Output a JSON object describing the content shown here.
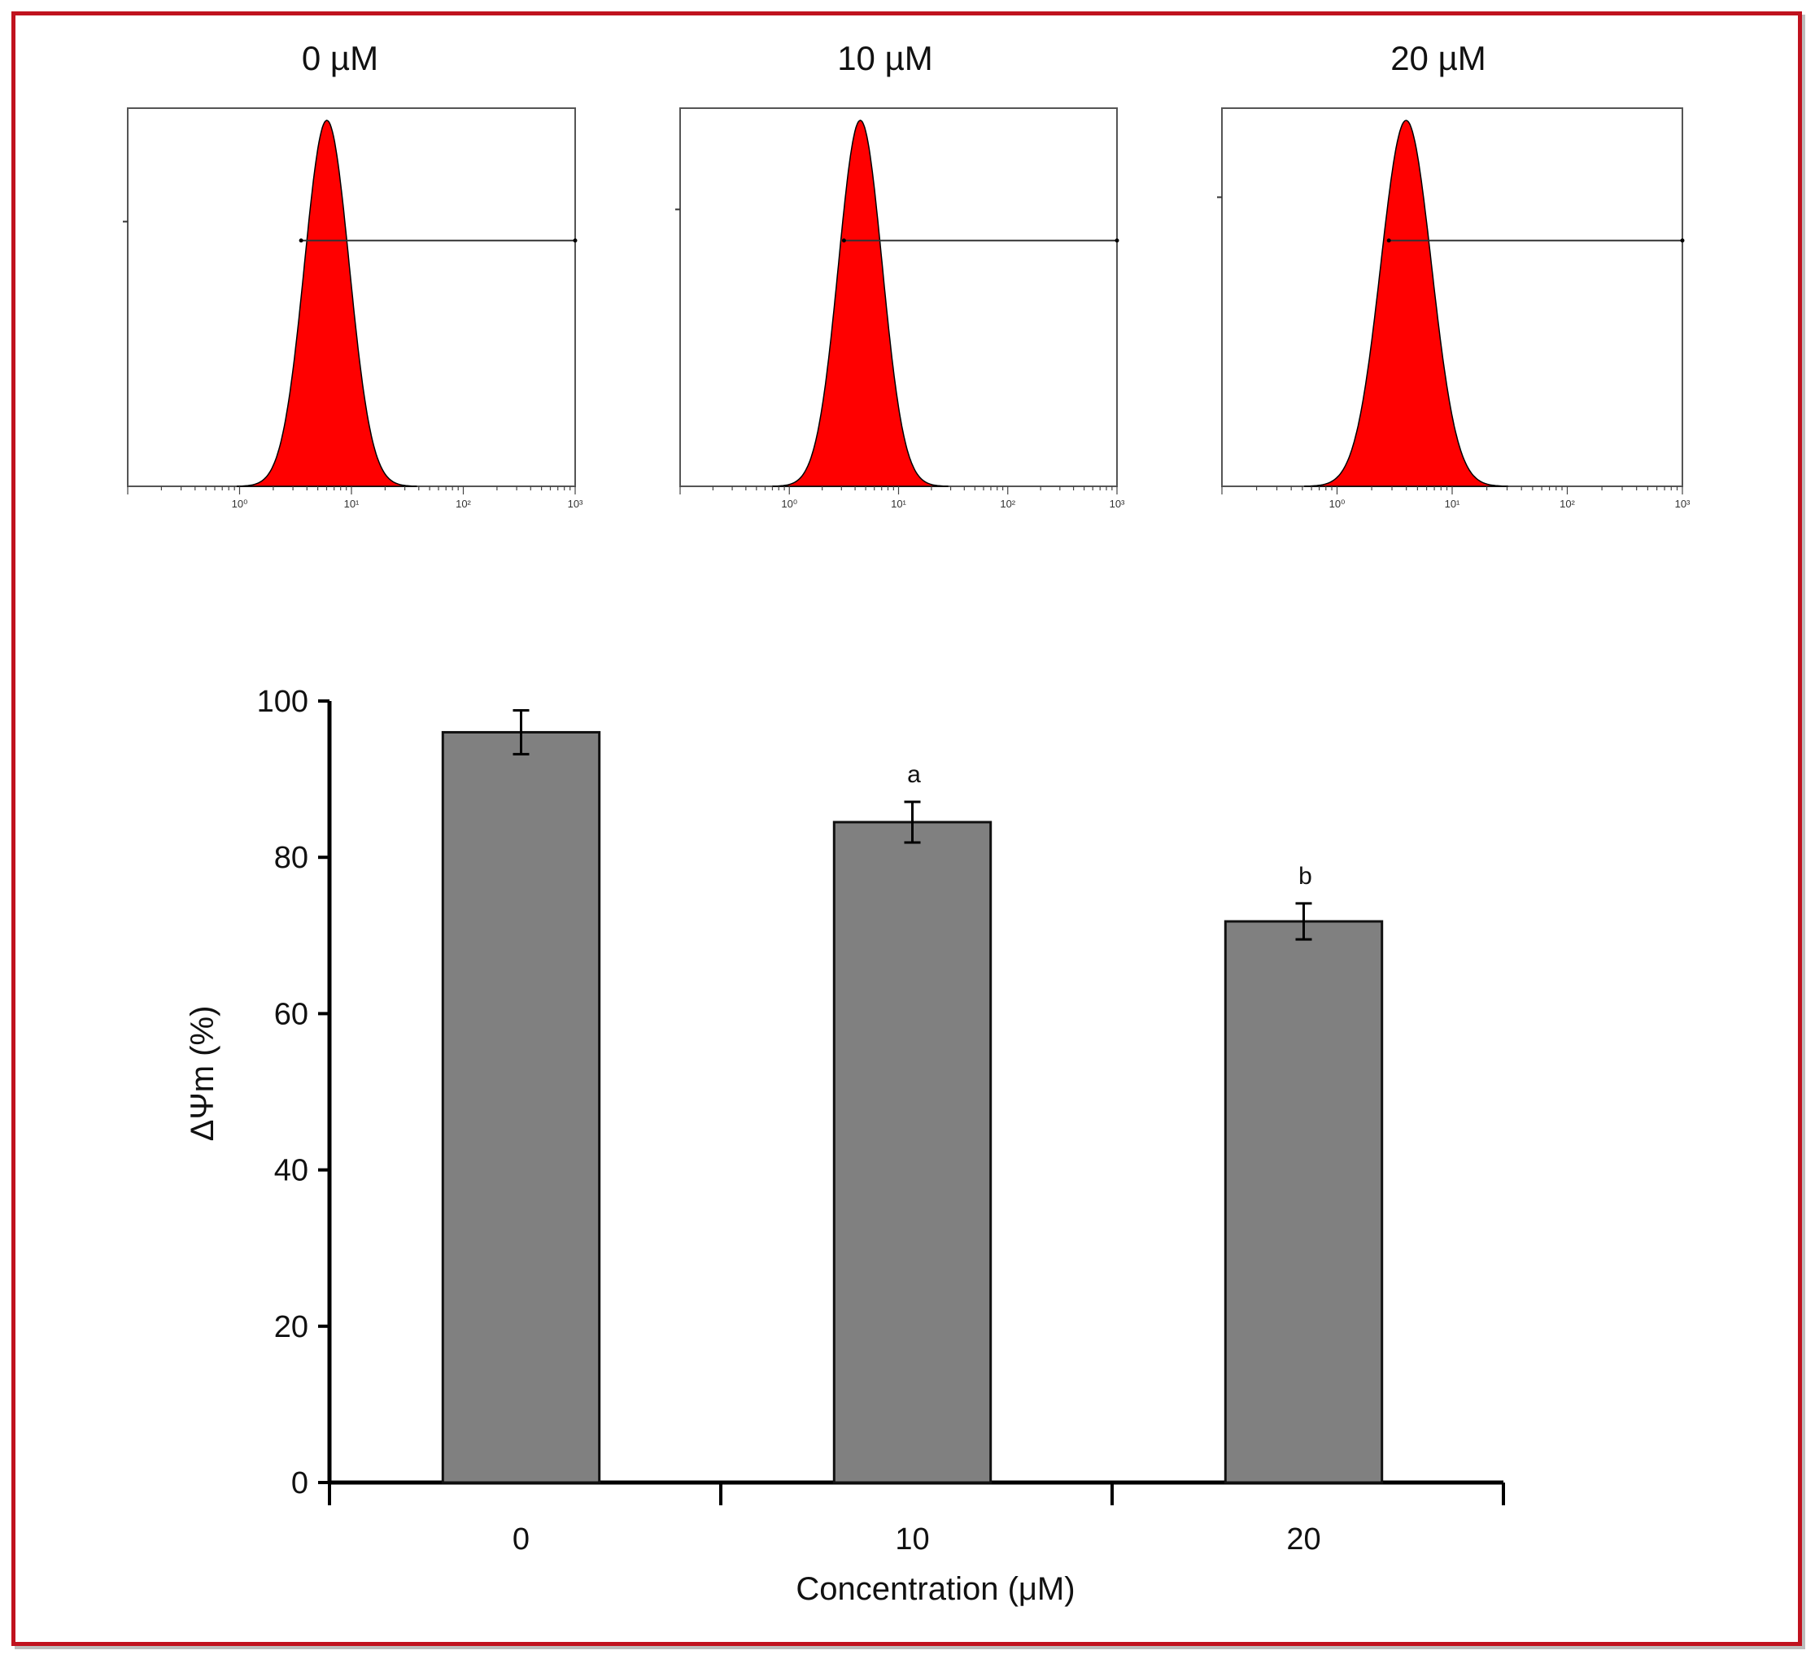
{
  "chart_data": [
    {
      "type": "histogram",
      "title": "0 µM",
      "x_scale": "log",
      "x_ticks": [
        "10⁰",
        "10¹",
        "10²",
        "10³"
      ],
      "peak_log10_x": 0.78,
      "peak_width_log10": 0.2,
      "gate_start_log10_x": 0.55,
      "fill_color": "#ff0000"
    },
    {
      "type": "histogram",
      "title": "10 µM",
      "x_scale": "log",
      "x_ticks": [
        "10⁰",
        "10¹",
        "10²",
        "10³"
      ],
      "peak_log10_x": 0.65,
      "peak_width_log10": 0.2,
      "gate_start_log10_x": 0.5,
      "fill_color": "#ff0000"
    },
    {
      "type": "histogram",
      "title": "20 µM",
      "x_scale": "log",
      "x_ticks": [
        "10⁰",
        "10¹",
        "10²",
        "10³"
      ],
      "peak_log10_x": 0.6,
      "peak_width_log10": 0.22,
      "gate_start_log10_x": 0.45,
      "fill_color": "#ff0000"
    },
    {
      "type": "bar",
      "categories": [
        "0",
        "10",
        "20"
      ],
      "values": [
        96,
        84.5,
        71.8
      ],
      "errors": [
        2.8,
        2.6,
        2.3
      ],
      "significance": [
        "",
        "a",
        "b"
      ],
      "xlabel": "Concentration (μM)",
      "ylabel": "ΔΨm (%)",
      "ylim": [
        0,
        100
      ],
      "yticks": [
        0,
        20,
        40,
        60,
        80,
        100
      ],
      "bar_color": "#808080"
    }
  ]
}
